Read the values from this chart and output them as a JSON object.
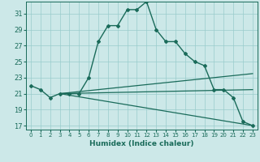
{
  "xlabel": "Humidex (Indice chaleur)",
  "bg_color": "#cce8e8",
  "grid_color": "#99cccc",
  "line_color": "#1a6b5a",
  "xlim": [
    -0.5,
    23.5
  ],
  "ylim": [
    16.5,
    32.5
  ],
  "yticks": [
    17,
    19,
    21,
    23,
    25,
    27,
    29,
    31
  ],
  "xticks": [
    0,
    1,
    2,
    3,
    4,
    5,
    6,
    7,
    8,
    9,
    10,
    11,
    12,
    13,
    14,
    15,
    16,
    17,
    18,
    19,
    20,
    21,
    22,
    23
  ],
  "main_line": {
    "x": [
      0,
      1,
      2,
      3,
      4,
      5,
      6,
      7,
      8,
      9,
      10,
      11,
      12,
      13,
      14,
      15,
      16,
      17,
      18,
      19,
      20,
      21,
      22,
      23
    ],
    "y": [
      22.0,
      21.5,
      20.5,
      21.0,
      21.0,
      21.0,
      23.0,
      27.5,
      29.5,
      29.5,
      31.5,
      31.5,
      32.5,
      29.0,
      27.5,
      27.5,
      26.0,
      25.0,
      24.5,
      21.5,
      21.5,
      20.5,
      17.5,
      17.0
    ]
  },
  "flat_lines": [
    {
      "x0": 3,
      "y0": 21.0,
      "x1": 23,
      "y1": 17.0
    },
    {
      "x0": 3,
      "y0": 21.0,
      "x1": 23,
      "y1": 21.5
    },
    {
      "x0": 3,
      "y0": 21.0,
      "x1": 23,
      "y1": 23.5
    }
  ]
}
